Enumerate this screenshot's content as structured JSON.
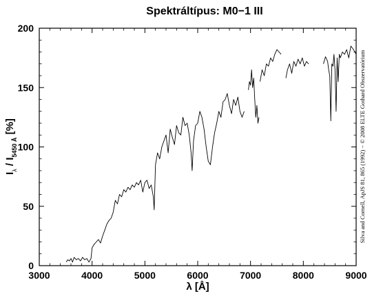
{
  "chart_data": {
    "type": "line",
    "title": "Spektráltípus: M0−1 III",
    "xlabel": "λ [Å]",
    "ylabel": {
      "main": "I",
      "main_sub": "λ",
      "mid": " / I",
      "ref_sub": "5450 Å",
      "suffix": " [%]"
    },
    "credit": "Silva and Cornell, ApJS 81, 865 (1992) − © 2008 ELTE Gothard Obszervatórium",
    "xlim": [
      3000,
      9000
    ],
    "ylim": [
      0,
      200
    ],
    "xticks": [
      3000,
      4000,
      5000,
      6000,
      7000,
      8000,
      9000
    ],
    "yticks": [
      0,
      50,
      100,
      150,
      200
    ],
    "grid": false,
    "color": "#000000",
    "series": [
      {
        "x": [
          3510,
          3540,
          3570,
          3600,
          3630,
          3660,
          3700,
          3740,
          3780,
          3820,
          3860,
          3900,
          3940,
          3980,
          4000,
          4040,
          4080,
          4120,
          4160,
          4200,
          4240,
          4280,
          4320,
          4360,
          4400,
          4440,
          4480,
          4520,
          4560,
          4600,
          4640,
          4680,
          4720,
          4760,
          4800,
          4840,
          4880,
          4920,
          4960,
          5000,
          5040,
          5080,
          5120,
          5160,
          5175,
          5200,
          5240,
          5280,
          5320,
          5360,
          5400,
          5440,
          5480,
          5520,
          5560,
          5600,
          5640,
          5680,
          5720,
          5760,
          5800,
          5840,
          5875,
          5895,
          5920,
          5960,
          6000,
          6040,
          6080,
          6120,
          6160,
          6200,
          6240,
          6280,
          6320,
          6360,
          6400,
          6440,
          6480,
          6520,
          6560,
          6600,
          6640,
          6680,
          6720,
          6760,
          6800,
          6840,
          6880
        ],
        "y": [
          3,
          5,
          4,
          6,
          3,
          7,
          5,
          6,
          4,
          7,
          5,
          6,
          3,
          6,
          15,
          18,
          20,
          22,
          19,
          25,
          30,
          35,
          38,
          40,
          45,
          55,
          52,
          60,
          58,
          64,
          62,
          66,
          64,
          68,
          66,
          70,
          68,
          72,
          62,
          70,
          72,
          65,
          68,
          58,
          47,
          85,
          95,
          90,
          100,
          105,
          110,
          95,
          115,
          108,
          102,
          118,
          112,
          110,
          125,
          118,
          120,
          110,
          95,
          80,
          105,
          118,
          120,
          130,
          125,
          115,
          100,
          88,
          85,
          100,
          112,
          120,
          130,
          125,
          138,
          140,
          145,
          135,
          128,
          140,
          135,
          142,
          130,
          125,
          130
        ]
      },
      {
        "x": [
          6960,
          6980,
          7000,
          7020,
          7040,
          7060,
          7080,
          7100,
          7120,
          7140,
          7160
        ],
        "y": [
          148,
          155,
          152,
          165,
          150,
          158,
          140,
          125,
          135,
          120,
          125
        ]
      },
      {
        "x": [
          7180,
          7220,
          7260,
          7300,
          7340,
          7380,
          7420,
          7460,
          7500,
          7540,
          7580
        ],
        "y": [
          155,
          165,
          160,
          170,
          168,
          175,
          172,
          178,
          182,
          180,
          178
        ]
      },
      {
        "x": [
          7670,
          7700,
          7740,
          7780,
          7820,
          7860,
          7900,
          7940,
          7980,
          8020,
          8060,
          8100
        ],
        "y": [
          158,
          165,
          170,
          162,
          172,
          168,
          174,
          170,
          175,
          168,
          172,
          170
        ]
      },
      {
        "x": [
          8380,
          8420,
          8460,
          8480,
          8500,
          8520,
          8540,
          8560,
          8580,
          8600,
          8620,
          8640,
          8660,
          8680,
          8700,
          8740,
          8780,
          8820,
          8860,
          8900,
          8950,
          9000
        ],
        "y": [
          170,
          176,
          172,
          165,
          160,
          122,
          170,
          168,
          178,
          165,
          130,
          175,
          155,
          178,
          175,
          180,
          178,
          182,
          175,
          185,
          182,
          178
        ]
      }
    ]
  }
}
